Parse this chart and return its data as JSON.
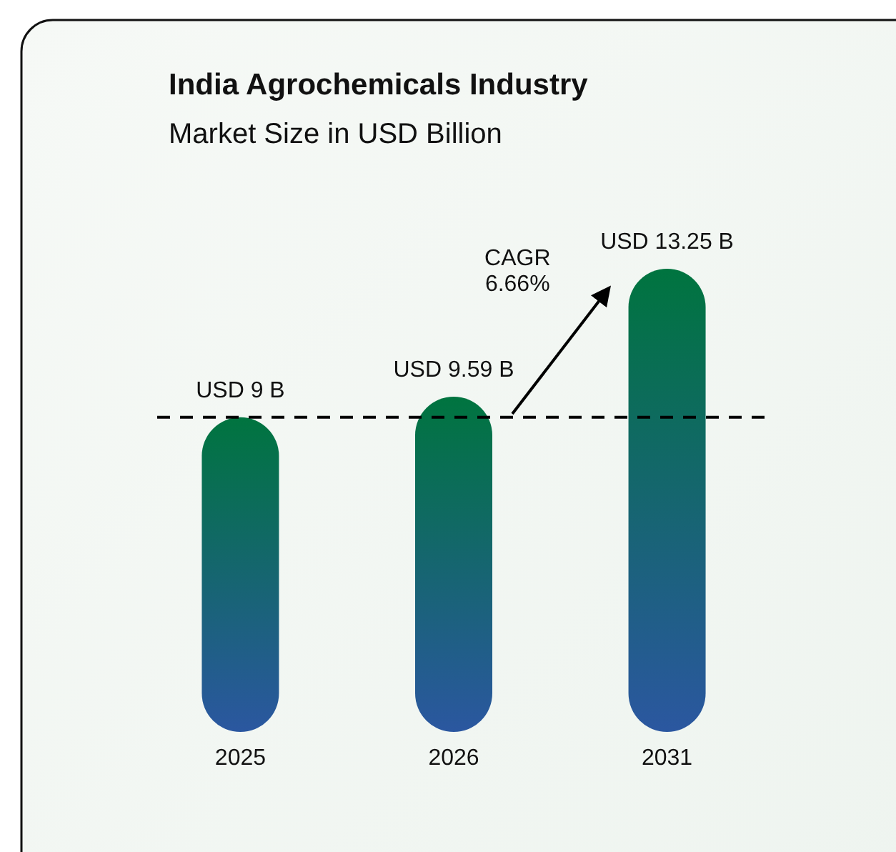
{
  "chart_data": {
    "type": "bar",
    "title": "India Agrochemicals Industry",
    "subtitle": "Market Size in USD Billion",
    "categories": [
      "2025",
      "2026",
      "2031"
    ],
    "values": [
      9,
      9.59,
      13.25
    ],
    "value_labels": [
      "USD 9 B",
      "USD 9.59 B",
      "USD 13.25 B"
    ],
    "color": "#00743f",
    "ref_lines": [
      {
        "axis": "y",
        "value": 9,
        "line_style": "dashed",
        "color": "#000000"
      }
    ],
    "annotations": [
      "CAGR\n6.66%"
    ]
  }
}
